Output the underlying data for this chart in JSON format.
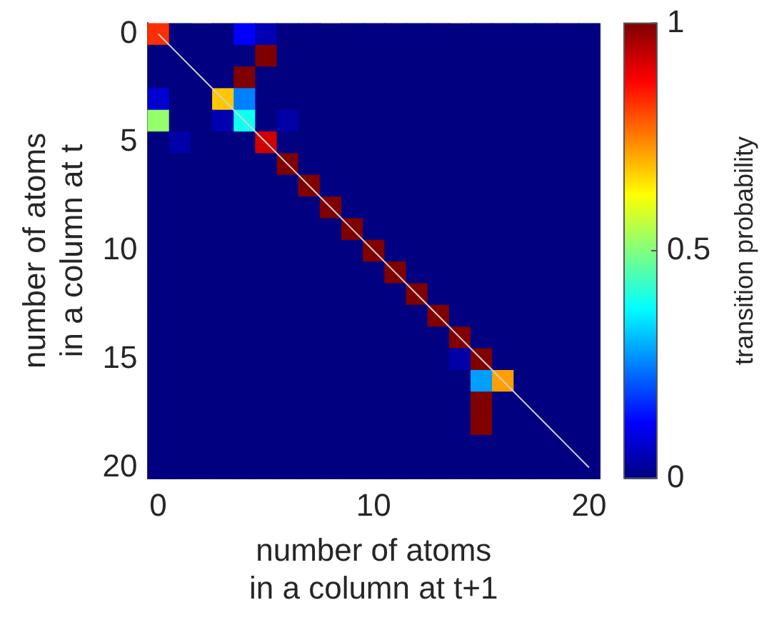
{
  "chart_data": {
    "type": "heatmap",
    "xlabel": "number of atoms\nin a column at t+1",
    "ylabel": "number of atoms\nin a column at t",
    "clabel": "transition probability",
    "categories": [
      "0",
      null,
      null,
      null,
      null,
      null,
      null,
      null,
      null,
      null,
      "10",
      null,
      null,
      null,
      null,
      null,
      null,
      null,
      null,
      null,
      "20"
    ],
    "y_categories": [
      "0",
      null,
      null,
      null,
      null,
      "5",
      null,
      null,
      null,
      null,
      "10",
      null,
      null,
      null,
      null,
      "15",
      null,
      null,
      null,
      null,
      "20"
    ],
    "cells": [
      [
        0.83,
        0,
        0,
        0,
        0.12,
        0.05,
        0,
        0,
        0,
        0,
        0,
        0,
        0,
        0,
        0,
        0,
        0,
        0,
        0,
        0,
        0
      ],
      [
        0,
        0,
        0,
        0,
        0,
        1,
        0,
        0,
        0,
        0,
        0,
        0,
        0,
        0,
        0,
        0,
        0,
        0,
        0,
        0,
        0
      ],
      [
        0,
        0,
        0,
        0,
        1,
        0,
        0,
        0,
        0,
        0,
        0,
        0,
        0,
        0,
        0,
        0,
        0,
        0,
        0,
        0,
        0
      ],
      [
        0.08,
        0,
        0,
        0.68,
        0.25,
        0,
        0,
        0,
        0,
        0,
        0,
        0,
        0,
        0,
        0,
        0,
        0,
        0,
        0,
        0,
        0
      ],
      [
        0.52,
        0,
        0,
        0.05,
        0.39,
        0,
        0.04,
        0,
        0,
        0,
        0,
        0,
        0,
        0,
        0,
        0,
        0,
        0,
        0,
        0,
        0
      ],
      [
        0,
        0.04,
        0,
        0,
        0,
        0.92,
        0,
        0,
        0,
        0,
        0,
        0,
        0,
        0,
        0,
        0,
        0,
        0,
        0,
        0,
        0
      ],
      [
        0,
        0,
        0,
        0,
        0,
        0,
        1,
        0,
        0,
        0,
        0,
        0,
        0,
        0,
        0,
        0,
        0,
        0,
        0,
        0,
        0
      ],
      [
        0,
        0,
        0,
        0,
        0,
        0,
        0,
        1,
        0,
        0,
        0,
        0,
        0,
        0,
        0,
        0,
        0,
        0,
        0,
        0,
        0
      ],
      [
        0,
        0,
        0,
        0,
        0,
        0,
        0,
        0,
        1,
        0,
        0,
        0,
        0,
        0,
        0,
        0,
        0,
        0,
        0,
        0,
        0
      ],
      [
        0,
        0,
        0,
        0,
        0,
        0,
        0,
        0,
        0,
        1,
        0,
        0,
        0,
        0,
        0,
        0,
        0,
        0,
        0,
        0,
        0
      ],
      [
        0,
        0,
        0,
        0,
        0,
        0,
        0,
        0,
        0,
        0,
        1,
        0,
        0,
        0,
        0,
        0,
        0,
        0,
        0,
        0,
        0
      ],
      [
        0,
        0,
        0,
        0,
        0,
        0,
        0,
        0,
        0,
        0,
        0,
        1,
        0,
        0,
        0,
        0,
        0,
        0,
        0,
        0,
        0
      ],
      [
        0,
        0,
        0,
        0,
        0,
        0,
        0,
        0,
        0,
        0,
        0,
        0,
        1,
        0,
        0,
        0,
        0,
        0,
        0,
        0,
        0
      ],
      [
        0,
        0,
        0,
        0,
        0,
        0,
        0,
        0,
        0,
        0,
        0,
        0,
        0,
        1,
        0,
        0,
        0,
        0,
        0,
        0,
        0
      ],
      [
        0,
        0,
        0,
        0,
        0,
        0,
        0,
        0,
        0,
        0,
        0,
        0,
        0,
        0,
        1,
        0,
        0,
        0,
        0,
        0,
        0
      ],
      [
        0,
        0,
        0,
        0,
        0,
        0,
        0,
        0,
        0,
        0,
        0,
        0,
        0,
        0,
        0.04,
        1,
        0,
        0,
        0,
        0,
        0
      ],
      [
        0,
        0,
        0,
        0,
        0,
        0,
        0,
        0,
        0,
        0,
        0,
        0,
        0,
        0,
        0,
        0.28,
        0.72,
        0,
        0,
        0,
        0
      ],
      [
        0,
        0,
        0,
        0,
        0,
        0,
        0,
        0,
        0,
        0,
        0,
        0,
        0,
        0,
        0,
        1,
        0,
        0,
        0,
        0,
        0
      ],
      [
        0,
        0,
        0,
        0,
        0,
        0,
        0,
        0,
        0,
        0,
        0,
        0,
        0,
        0,
        0,
        1,
        0,
        0,
        0,
        0,
        0
      ],
      [
        0,
        0,
        0,
        0,
        0,
        0,
        0,
        0,
        0,
        0,
        0,
        0,
        0,
        0,
        0,
        0,
        0,
        0,
        0,
        0,
        0
      ],
      [
        0,
        0,
        0,
        0,
        0,
        0,
        0,
        0,
        0,
        0,
        0,
        0,
        0,
        0,
        0,
        0,
        0,
        0,
        0,
        0,
        0
      ]
    ],
    "clim": [
      0,
      1
    ],
    "cticks": [
      0,
      0.5,
      1
    ],
    "series": [
      {
        "type": "line",
        "values": [
          0,
          1,
          2,
          3,
          4,
          5,
          6,
          7,
          8,
          9,
          10,
          11,
          12,
          13,
          14,
          15,
          16,
          17,
          18,
          19,
          20
        ],
        "color": "#d0d0d0"
      }
    ]
  }
}
